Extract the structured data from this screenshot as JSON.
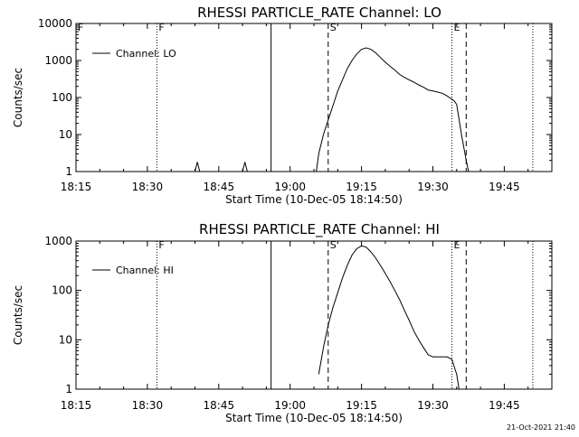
{
  "chart_data": [
    {
      "type": "line",
      "title": "RHESSI PARTICLE_RATE Channel: LO",
      "xlabel": "Start Time (10-Dec-05 18:14:50)",
      "ylabel": "Counts/sec",
      "ylog": true,
      "xlim": [
        "18:15",
        "19:55"
      ],
      "ylim": [
        1,
        10000
      ],
      "xticks": [
        "18:15",
        "18:30",
        "18:45",
        "19:00",
        "19:15",
        "19:30",
        "19:45"
      ],
      "yticks": [
        "1",
        "10",
        "100",
        "1000",
        "10000"
      ],
      "legend": {
        "position": "top-left",
        "label": "Channel: LO"
      },
      "markers": [
        {
          "label": "F",
          "time": "18:15",
          "style": "none"
        },
        {
          "label": "",
          "time": "18:32",
          "style": "dotted"
        },
        {
          "label": "F",
          "time": "18:32",
          "style": "none"
        },
        {
          "label": "",
          "time": "18:56",
          "style": "solid"
        },
        {
          "label": "S",
          "time": "19:08",
          "style": "dashed"
        },
        {
          "label": "E",
          "time": "19:34",
          "style": "dotted"
        },
        {
          "label": "",
          "time": "19:37",
          "style": "dashed"
        },
        {
          "label": "",
          "time": "19:51",
          "style": "dotted"
        }
      ],
      "series": [
        {
          "name": "Channel: LO",
          "x": [
            "18:15",
            "18:40",
            "18:40.5",
            "18:41",
            "18:50",
            "18:50.5",
            "18:51",
            "19:05.5",
            "19:06",
            "19:07",
            "19:08",
            "19:09",
            "19:10",
            "19:11",
            "19:12",
            "19:13",
            "19:14",
            "19:15",
            "19:16",
            "19:17",
            "19:18",
            "19:19",
            "19:20",
            "19:21",
            "19:22",
            "19:23",
            "19:24",
            "19:25",
            "19:26",
            "19:27",
            "19:28",
            "19:29",
            "19:30",
            "19:31",
            "19:32",
            "19:33",
            "19:34",
            "19:34.5",
            "19:35",
            "19:36",
            "19:37",
            "19:37.5"
          ],
          "values": [
            1,
            1,
            1.8,
            1,
            1,
            1.8,
            1,
            1,
            3,
            10,
            25,
            60,
            150,
            300,
            600,
            1000,
            1500,
            2000,
            2200,
            2000,
            1600,
            1200,
            900,
            700,
            550,
            420,
            350,
            300,
            260,
            220,
            190,
            160,
            150,
            140,
            130,
            110,
            90,
            80,
            65,
            10,
            2,
            1
          ]
        }
      ]
    },
    {
      "type": "line",
      "title": "RHESSI PARTICLE_RATE Channel: HI",
      "xlabel": "Start Time (10-Dec-05 18:14:50)",
      "ylabel": "Counts/sec",
      "ylog": true,
      "xlim": [
        "18:15",
        "19:55"
      ],
      "ylim": [
        1,
        1000
      ],
      "xticks": [
        "18:15",
        "18:30",
        "18:45",
        "19:00",
        "19:15",
        "19:30",
        "19:45"
      ],
      "yticks": [
        "1",
        "10",
        "100",
        "1000"
      ],
      "legend": {
        "position": "top-left",
        "label": "Channel: HI"
      },
      "markers": [
        {
          "label": "",
          "time": "18:32",
          "style": "dotted"
        },
        {
          "label": "F",
          "time": "18:32",
          "style": "none"
        },
        {
          "label": "",
          "time": "18:56",
          "style": "solid"
        },
        {
          "label": "S",
          "time": "19:08",
          "style": "dashed"
        },
        {
          "label": "E",
          "time": "19:34",
          "style": "dotted"
        },
        {
          "label": "",
          "time": "19:37",
          "style": "dashed"
        },
        {
          "label": "",
          "time": "19:51",
          "style": "dotted"
        }
      ],
      "series": [
        {
          "name": "Channel: HI",
          "x": [
            "19:06",
            "19:07",
            "19:08",
            "19:09",
            "19:10",
            "19:11",
            "19:12",
            "19:13",
            "19:14",
            "19:15",
            "19:16",
            "19:17",
            "19:18",
            "19:19",
            "19:20",
            "19:21",
            "19:22",
            "19:23",
            "19:24",
            "19:25",
            "19:26",
            "19:27",
            "19:28",
            "19:29",
            "19:30",
            "19:31",
            "19:32",
            "19:33",
            "19:34",
            "19:35",
            "19:35.5"
          ],
          "values": [
            2,
            7,
            20,
            45,
            90,
            180,
            320,
            520,
            700,
            800,
            750,
            600,
            450,
            320,
            220,
            150,
            100,
            65,
            40,
            25,
            15,
            10,
            7,
            5,
            4.5,
            4.5,
            4.5,
            4.5,
            4,
            2,
            1
          ]
        }
      ]
    }
  ],
  "timestamp": "21-Oct-2021 21:40"
}
